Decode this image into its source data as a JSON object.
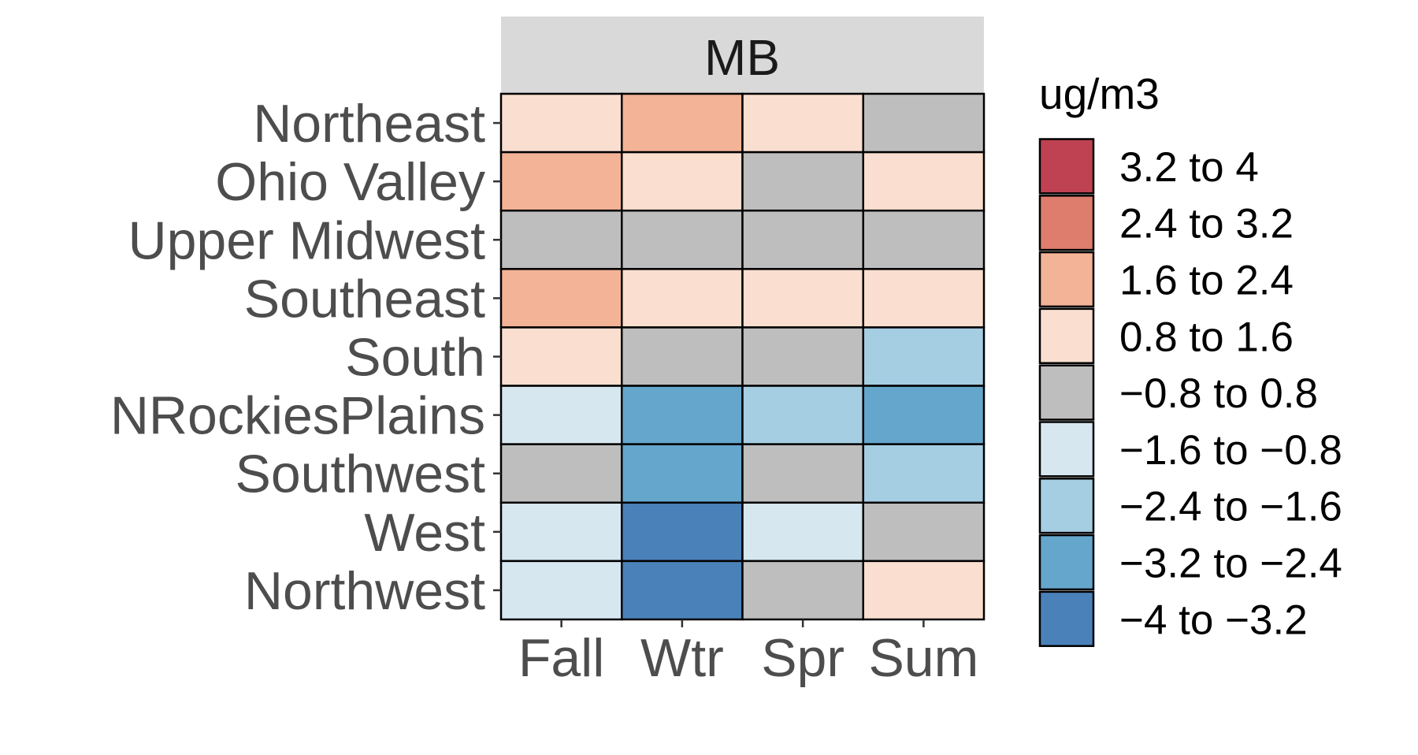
{
  "chart_data": {
    "type": "heatmap",
    "title": "",
    "facet_label": "MB",
    "xlabel": "",
    "ylabel": "",
    "x_categories": [
      "Fall",
      "Wtr",
      "Spr",
      "Sum"
    ],
    "y_categories": [
      "Northeast",
      "Ohio Valley",
      "Upper Midwest",
      "Southeast",
      "South",
      "NRockiesPlains",
      "Southwest",
      "West",
      "Northwest"
    ],
    "legend": {
      "title": "ug/m3",
      "placement": "right",
      "bins": [
        {
          "label": "3.2 to 4",
          "range": [
            3.2,
            4
          ],
          "color": "#BE4252"
        },
        {
          "label": "2.4 to 3.2",
          "range": [
            2.4,
            3.2
          ],
          "color": "#DE7D6D"
        },
        {
          "label": "1.6 to 2.4",
          "range": [
            1.6,
            2.4
          ],
          "color": "#F3B396"
        },
        {
          "label": "0.8 to 1.6",
          "range": [
            0.8,
            1.6
          ],
          "color": "#FADFD0"
        },
        {
          "label": "−0.8 to 0.8",
          "range": [
            -0.8,
            0.8
          ],
          "color": "#BEBEBE"
        },
        {
          "label": "−1.6 to −0.8",
          "range": [
            -1.6,
            -0.8
          ],
          "color": "#D6E7F0"
        },
        {
          "label": "−2.4 to −1.6",
          "range": [
            -2.4,
            -1.6
          ],
          "color": "#A6CEE3"
        },
        {
          "label": "−3.2 to −2.4",
          "range": [
            -3.2,
            -2.4
          ],
          "color": "#65A6CC"
        },
        {
          "label": "−4 to −3.2",
          "range": [
            -4,
            -3.2
          ],
          "color": "#4A81B9"
        }
      ]
    },
    "cells_bin_labels": [
      [
        "0.8 to 1.6",
        "1.6 to 2.4",
        "0.8 to 1.6",
        "−0.8 to 0.8"
      ],
      [
        "1.6 to 2.4",
        "0.8 to 1.6",
        "−0.8 to 0.8",
        "0.8 to 1.6"
      ],
      [
        "−0.8 to 0.8",
        "−0.8 to 0.8",
        "−0.8 to 0.8",
        "−0.8 to 0.8"
      ],
      [
        "1.6 to 2.4",
        "0.8 to 1.6",
        "0.8 to 1.6",
        "0.8 to 1.6"
      ],
      [
        "0.8 to 1.6",
        "−0.8 to 0.8",
        "−0.8 to 0.8",
        "−2.4 to −1.6"
      ],
      [
        "−1.6 to −0.8",
        "−3.2 to −2.4",
        "−2.4 to −1.6",
        "−3.2 to −2.4"
      ],
      [
        "−0.8 to 0.8",
        "−3.2 to −2.4",
        "−0.8 to 0.8",
        "−2.4 to −1.6"
      ],
      [
        "−1.6 to −0.8",
        "−4 to −3.2",
        "−1.6 to −0.8",
        "−0.8 to 0.8"
      ],
      [
        "−1.6 to −0.8",
        "−4 to −3.2",
        "−0.8 to 0.8",
        "0.8 to 1.6"
      ]
    ]
  }
}
